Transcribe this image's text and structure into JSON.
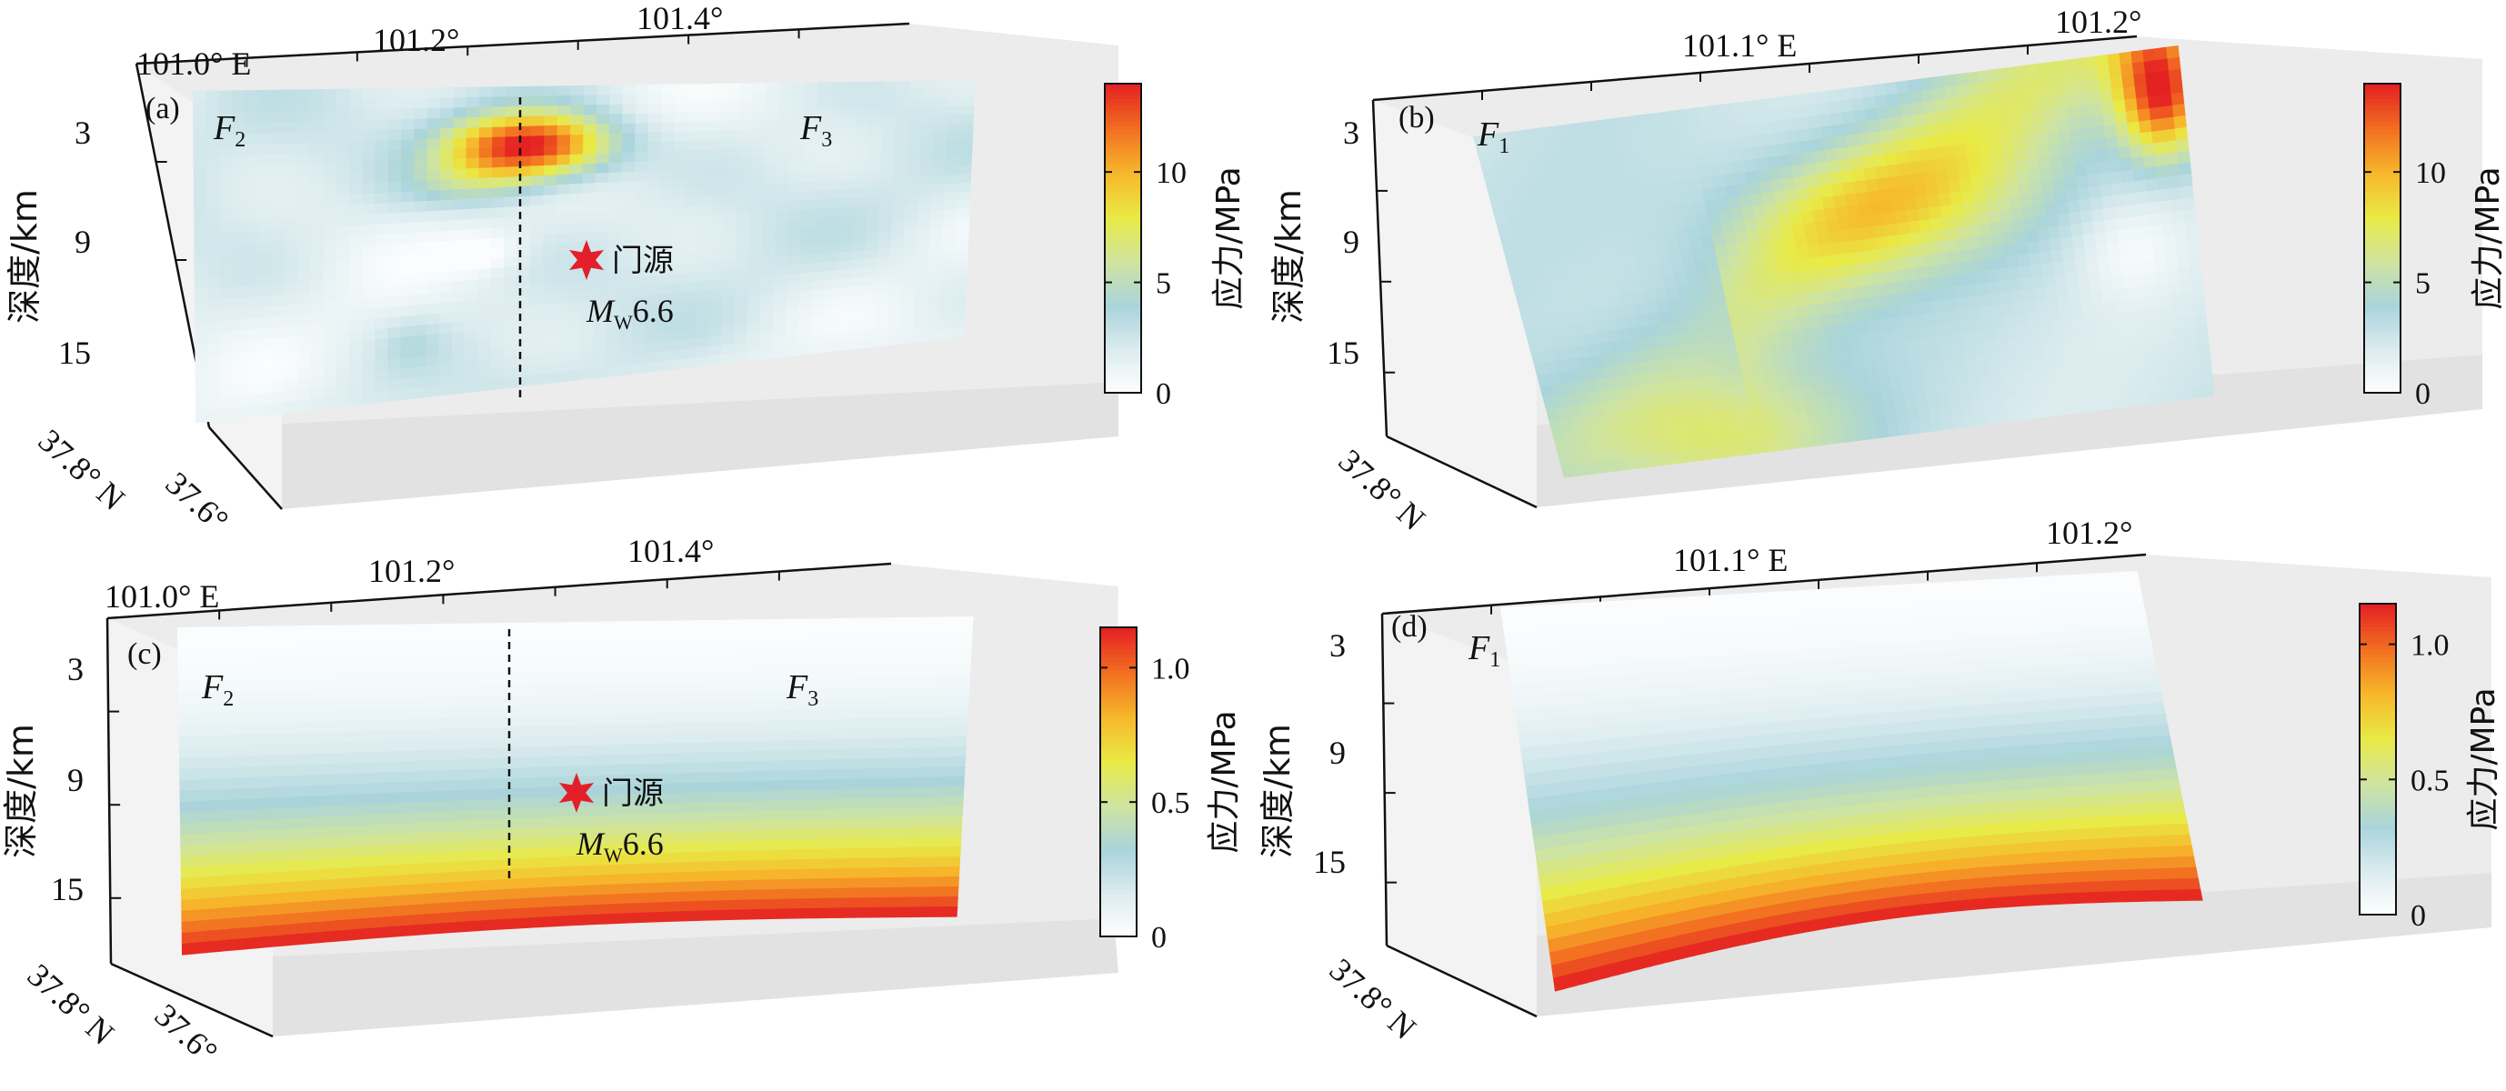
{
  "figure": {
    "source_note": "Four-panel stress distribution on fault planes (3-D boxes with colorbars)."
  },
  "chart_data": [
    {
      "type": "heatmap",
      "panel_label": "(a)",
      "fault_labels": [
        {
          "base": "F",
          "sub": "2"
        },
        {
          "base": "F",
          "sub": "3"
        }
      ],
      "x_ticks": [
        "101.0° E",
        "101.2°",
        "101.4°"
      ],
      "y_ticks": [
        "3",
        "9",
        "15"
      ],
      "ylabel": "深度/km",
      "depth_axis_labels": [
        "37.8° N",
        "37.6°"
      ],
      "colorbar": {
        "label": "应力/MPa",
        "ticks": [
          "0",
          "5",
          "10"
        ],
        "range": [
          0,
          14
        ]
      },
      "epicenter": {
        "name": "门源",
        "mag_prefix": "M",
        "mag_sub": "W",
        "mag_value": "6.6"
      },
      "pattern": "concentrated high-stress patch (~14 MPa) at 2–5 km depth near 101.27° E, low background elsewhere"
    },
    {
      "type": "heatmap",
      "panel_label": "(b)",
      "fault_labels": [
        {
          "base": "F",
          "sub": "1"
        }
      ],
      "x_ticks": [
        "101.1° E",
        "101.2°"
      ],
      "y_ticks": [
        "3",
        "9",
        "15"
      ],
      "ylabel": "深度/km",
      "depth_axis_labels": [
        "37.8° N"
      ],
      "colorbar": {
        "label": "应力/MPa",
        "ticks": [
          "0",
          "5",
          "10"
        ],
        "range": [
          0,
          14
        ]
      },
      "pattern": "moderate (~5–7 MPa) diagonal band, high (~13 MPa) at upper-right edge"
    },
    {
      "type": "heatmap",
      "panel_label": "(c)",
      "fault_labels": [
        {
          "base": "F",
          "sub": "2"
        },
        {
          "base": "F",
          "sub": "3"
        }
      ],
      "x_ticks": [
        "101.0° E",
        "101.2°",
        "101.4°"
      ],
      "y_ticks": [
        "3",
        "9",
        "15"
      ],
      "ylabel": "深度/km",
      "depth_axis_labels": [
        "37.8° N",
        "37.6°"
      ],
      "colorbar": {
        "label": "应力/MPa",
        "ticks": [
          "0",
          "0.5",
          "1.0"
        ],
        "range": [
          0,
          1.15
        ]
      },
      "epicenter": {
        "name": "门源",
        "mag_prefix": "M",
        "mag_sub": "W",
        "mag_value": "6.6"
      },
      "pattern": "stress increases with depth from ~0 at surface to ~1.1 MPa at ~18 km"
    },
    {
      "type": "heatmap",
      "panel_label": "(d)",
      "fault_labels": [
        {
          "base": "F",
          "sub": "1"
        }
      ],
      "x_ticks": [
        "101.1° E",
        "101.2°"
      ],
      "y_ticks": [
        "3",
        "9",
        "15"
      ],
      "ylabel": "深度/km",
      "depth_axis_labels": [
        "37.8° N"
      ],
      "colorbar": {
        "label": "应力/MPa",
        "ticks": [
          "0",
          "0.5",
          "1.0"
        ],
        "range": [
          0,
          1.15
        ]
      },
      "pattern": "stress increases with depth from ~0 at surface to ~1.1 MPa at ~18 km"
    }
  ],
  "colors": {
    "colormap": [
      "#ffffff",
      "#dcecef",
      "#a9d4db",
      "#cfe4a0",
      "#e9ea45",
      "#f6b82b",
      "#f27021",
      "#e52222"
    ],
    "star": "#e3202a",
    "wall": "#ececec",
    "wall_dark": "#e2e2e2"
  }
}
